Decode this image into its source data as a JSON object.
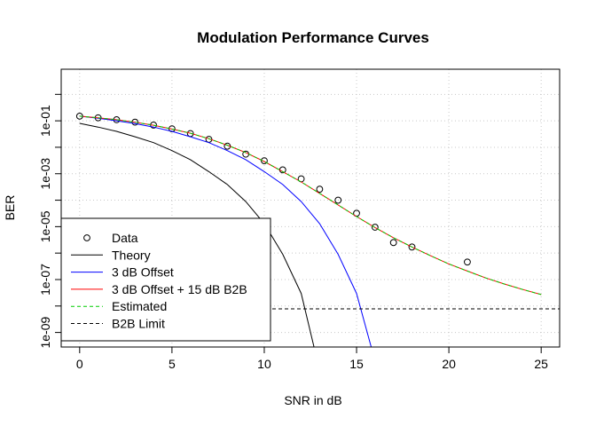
{
  "chart_data": {
    "type": "line",
    "title": "Modulation Performance Curves",
    "xlabel": "SNR in dB",
    "ylabel": "BER",
    "xlim": [
      -1,
      26
    ],
    "ylim_log10": [
      -9.55,
      0.95
    ],
    "y_scale": "log",
    "grid": true,
    "legend_position": "bottom-left",
    "x_ticks": [
      0,
      5,
      10,
      15,
      20,
      25
    ],
    "x_tick_labels": [
      "0",
      "5",
      "10",
      "15",
      "20",
      "25"
    ],
    "y_ticks": [
      0.1,
      0.001,
      1e-05,
      1e-07,
      1e-09
    ],
    "y_tick_labels": [
      "1e-01",
      "1e-03",
      "1e-05",
      "1e-07",
      "1e-09"
    ],
    "series": [
      {
        "name": "Data",
        "style": "points",
        "color": "#000000",
        "x": [
          0,
          1,
          2,
          3,
          4,
          5,
          6,
          7,
          8,
          9,
          10,
          11,
          12,
          13,
          14,
          15,
          16,
          17,
          18,
          21
        ],
        "y": [
          0.15,
          0.13,
          0.11,
          0.089,
          0.069,
          0.05,
          0.033,
          0.02,
          0.011,
          0.0055,
          0.0031,
          0.0014,
          0.00064,
          0.00026,
          0.0001,
          3.2e-05,
          9.5e-06,
          2.5e-06,
          1.7e-06,
          4.6e-07
        ]
      },
      {
        "name": "Theory",
        "style": "line",
        "color": "#000000",
        "x": [
          0,
          1,
          2,
          3,
          4,
          5,
          6,
          7,
          8,
          9,
          10,
          11,
          12,
          12.7
        ],
        "y": [
          0.08,
          0.058,
          0.04,
          0.025,
          0.015,
          0.0075,
          0.0034,
          0.0012,
          0.00039,
          8.9e-05,
          1.3e-05,
          9e-07,
          3e-08,
          2.7e-10
        ]
      },
      {
        "name": "3 dB Offset",
        "style": "line",
        "color": "#0000ff",
        "x": [
          0,
          1,
          2,
          3,
          4,
          5,
          6,
          7,
          8,
          9,
          10,
          11,
          12,
          13,
          14,
          15,
          15.8
        ],
        "y": [
          0.15,
          0.125,
          0.1,
          0.079,
          0.058,
          0.04,
          0.025,
          0.015,
          0.0075,
          0.0034,
          0.0012,
          0.00039,
          8.9e-05,
          1.3e-05,
          9e-07,
          3e-08,
          2.7e-10
        ]
      },
      {
        "name": "3 dB Offset + 15 dB B2B",
        "style": "line",
        "color": "#ff0000",
        "x": [
          0,
          1,
          2,
          3,
          4,
          5,
          6,
          7,
          8,
          9,
          10,
          11,
          12,
          13,
          14,
          15,
          16,
          17,
          18,
          19,
          20,
          21,
          22,
          23,
          24,
          25
        ],
        "y": [
          0.15,
          0.13,
          0.11,
          0.088,
          0.068,
          0.049,
          0.034,
          0.021,
          0.012,
          0.0063,
          0.0029,
          0.0012,
          0.00049,
          0.00018,
          6.6e-05,
          2.4e-05,
          9.2e-06,
          3.8e-06,
          1.7e-06,
          8e-07,
          3.9e-07,
          2.1e-07,
          1.15e-07,
          6.8e-08,
          4.2e-08,
          2.7e-08
        ]
      },
      {
        "name": "Estimated",
        "style": "dashed",
        "color": "#00cd00",
        "x": [
          0,
          1,
          2,
          3,
          4,
          5,
          6,
          7,
          8,
          9,
          10,
          11,
          12,
          13,
          14,
          15,
          16,
          17,
          18,
          19,
          20,
          21,
          22,
          23,
          24,
          25
        ],
        "y": [
          0.15,
          0.13,
          0.11,
          0.088,
          0.068,
          0.049,
          0.034,
          0.021,
          0.012,
          0.0063,
          0.0029,
          0.0012,
          0.00049,
          0.00018,
          6.6e-05,
          2.4e-05,
          9.2e-06,
          3.8e-06,
          1.7e-06,
          8e-07,
          3.9e-07,
          2.1e-07,
          1.15e-07,
          6.8e-08,
          4.2e-08,
          2.7e-08
        ]
      },
      {
        "name": "B2B Limit",
        "style": "dashed",
        "color": "#000000",
        "x": [
          -1,
          26
        ],
        "y": [
          7.8e-09,
          7.8e-09
        ]
      }
    ]
  }
}
